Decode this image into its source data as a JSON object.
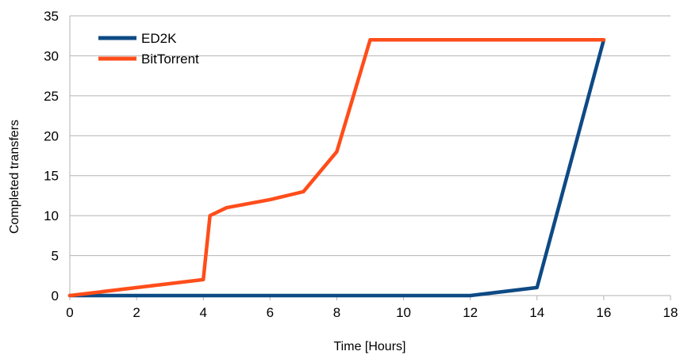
{
  "chart_data": {
    "type": "line",
    "xlabel": "Time [Hours]",
    "ylabel": "Completed transfers",
    "xlim": [
      0,
      18
    ],
    "ylim": [
      0,
      35
    ],
    "x_ticks": [
      0,
      2,
      4,
      6,
      8,
      10,
      12,
      14,
      16,
      18
    ],
    "y_ticks": [
      0,
      5,
      10,
      15,
      20,
      25,
      30,
      35
    ],
    "grid": "horizontal",
    "legend_position": "top-left",
    "series": [
      {
        "name": "ED2K",
        "color": "#0e4a84",
        "points": [
          [
            0,
            0
          ],
          [
            12,
            0
          ],
          [
            14,
            1
          ],
          [
            16,
            32
          ]
        ]
      },
      {
        "name": "BitTorrent",
        "color": "#ff4d1a",
        "points": [
          [
            0,
            0
          ],
          [
            4,
            2
          ],
          [
            4.2,
            10
          ],
          [
            4.7,
            11
          ],
          [
            6,
            12
          ],
          [
            7,
            13
          ],
          [
            8,
            18
          ],
          [
            9,
            32
          ],
          [
            16,
            32
          ]
        ]
      }
    ]
  }
}
